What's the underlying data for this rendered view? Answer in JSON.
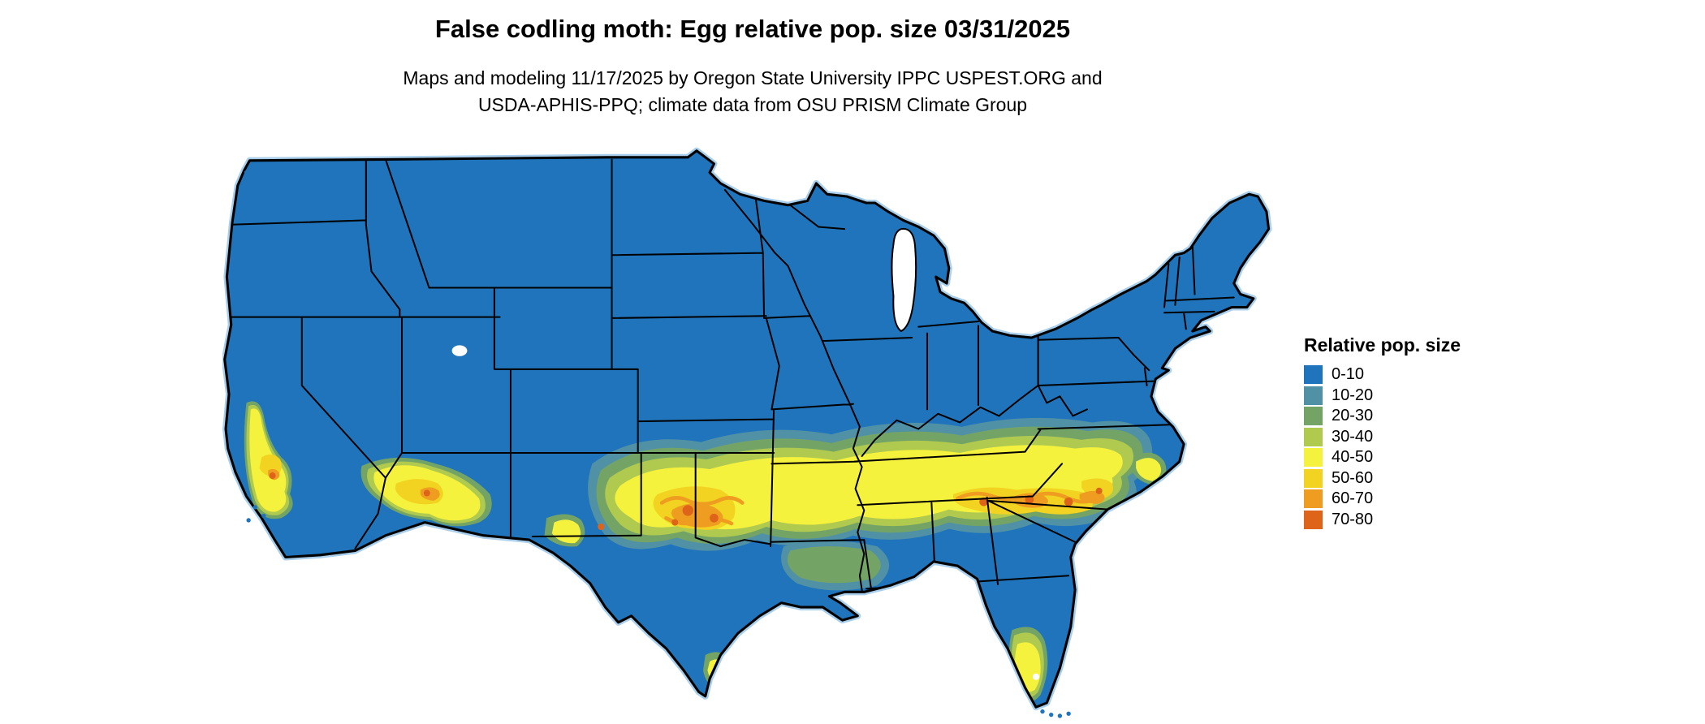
{
  "header": {
    "title": "False codling moth: Egg relative pop. size 03/31/2025",
    "subtitle_line1": "Maps and modeling 11/17/2025 by Oregon State University IPPC USPEST.ORG and",
    "subtitle_line2": "USDA-APHIS-PPQ; climate data from OSU PRISM Climate Group"
  },
  "legend": {
    "title": "Relative pop. size",
    "items": [
      {
        "label": "0-10",
        "color": "#1f74bb"
      },
      {
        "label": "10-20",
        "color": "#5191a6"
      },
      {
        "label": "20-30",
        "color": "#74a465"
      },
      {
        "label": "30-40",
        "color": "#b0c94f"
      },
      {
        "label": "40-50",
        "color": "#f5f23d"
      },
      {
        "label": "50-60",
        "color": "#f2d321"
      },
      {
        "label": "60-70",
        "color": "#ef9d20"
      },
      {
        "label": "70-80",
        "color": "#dd6418"
      }
    ]
  },
  "map": {
    "land_color": "#1f74bb",
    "border_color": "#000000",
    "lake_color": "#ffffff",
    "coast_halo_color": "#a9cfec"
  }
}
